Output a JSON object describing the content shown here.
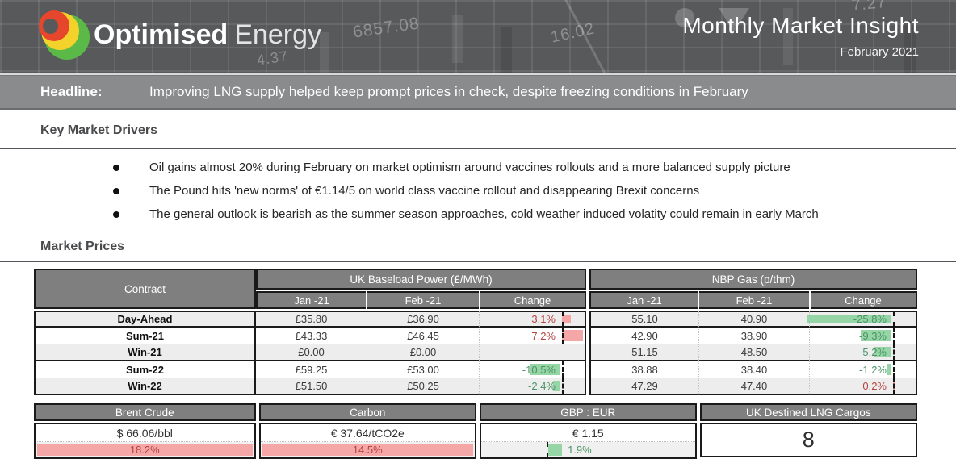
{
  "banner": {
    "brand_bold": "Optimised",
    "brand_light": "Energy",
    "title": "Monthly Market Insight",
    "date": "February 2021",
    "ticker_numbers": [
      "6857.08",
      "4.37",
      "16.02",
      "7.27"
    ]
  },
  "headline": {
    "label": "Headline:",
    "text": "Improving LNG supply helped keep prompt prices in check, despite freezing conditions in February"
  },
  "drivers": {
    "heading": "Key Market Drivers",
    "bullets": [
      "Oil gains almost 20% during February on market optimism around vaccines rollouts and a more balanced supply picture",
      "The Pound hits 'new norms' of €1.14/5 on world class vaccine rollout and disappearing Brexit concerns",
      "The general outlook is bearish as the summer season approaches, cold weather induced volatity could remain in early March"
    ]
  },
  "prices": {
    "heading": "Market Prices",
    "table": {
      "contract_header": "Contract",
      "power_header": "UK Baseload Power (£/MWh)",
      "gas_header": "NBP Gas (p/thm)",
      "col_jan": "Jan -21",
      "col_feb": "Feb -21",
      "col_change": "Change",
      "rows": [
        {
          "contract": "Day-Ahead",
          "power": {
            "jan": "£35.80",
            "feb": "£36.90",
            "change": "3.1%",
            "change_val": 3.1
          },
          "gas": {
            "jan": "55.10",
            "feb": "40.90",
            "change": "-25.8%",
            "change_val": -25.8
          }
        },
        {
          "contract": "Sum-21",
          "power": {
            "jan": "£43.33",
            "feb": "£46.45",
            "change": "7.2%",
            "change_val": 7.2
          },
          "gas": {
            "jan": "42.90",
            "feb": "38.90",
            "change": "-9.3%",
            "change_val": -9.3
          }
        },
        {
          "contract": "Win-21",
          "power": {
            "jan": "£0.00",
            "feb": "£0.00",
            "change": "",
            "change_val": null
          },
          "gas": {
            "jan": "51.15",
            "feb": "48.50",
            "change": "-5.2%",
            "change_val": -5.2
          }
        },
        {
          "contract": "Sum-22",
          "power": {
            "jan": "£59.25",
            "feb": "£53.00",
            "change": "-10.5%",
            "change_val": -10.5
          },
          "gas": {
            "jan": "38.88",
            "feb": "38.40",
            "change": "-1.2%",
            "change_val": -1.2
          }
        },
        {
          "contract": "Win-22",
          "power": {
            "jan": "£51.50",
            "feb": "£50.25",
            "change": "-2.4%",
            "change_val": -2.4
          },
          "gas": {
            "jan": "47.29",
            "feb": "47.40",
            "change": "0.2%",
            "change_val": 0.2
          }
        }
      ]
    },
    "summary": [
      {
        "label": "Brent Crude",
        "value": "$ 66.06/bbl",
        "change": "18.2%",
        "change_val": 18.2,
        "bar_color": "red"
      },
      {
        "label": "Carbon",
        "value": "€ 37.64/tCO2e",
        "change": "14.5%",
        "change_val": 14.5,
        "bar_color": "red"
      },
      {
        "label": "GBP : EUR",
        "value": "€ 1.15",
        "change": "1.9%",
        "change_val": 1.9,
        "bar_color": "green"
      },
      {
        "label": "UK Destined LNG Cargos",
        "value": "8",
        "change": "",
        "change_val": null,
        "bar_color": ""
      }
    ]
  },
  "colors": {
    "banner_bg": "#58595B",
    "headline_bg": "#8A8B8D",
    "table_header_bg": "#7F7F7F",
    "positive_bar": "#F5A7A7",
    "negative_bar": "#95D5A6",
    "positive_text": "#B5443F",
    "negative_text": "#4C9365",
    "logo_green": "#5BB947",
    "logo_yellow": "#F2D22B",
    "logo_red": "#E6462C"
  }
}
